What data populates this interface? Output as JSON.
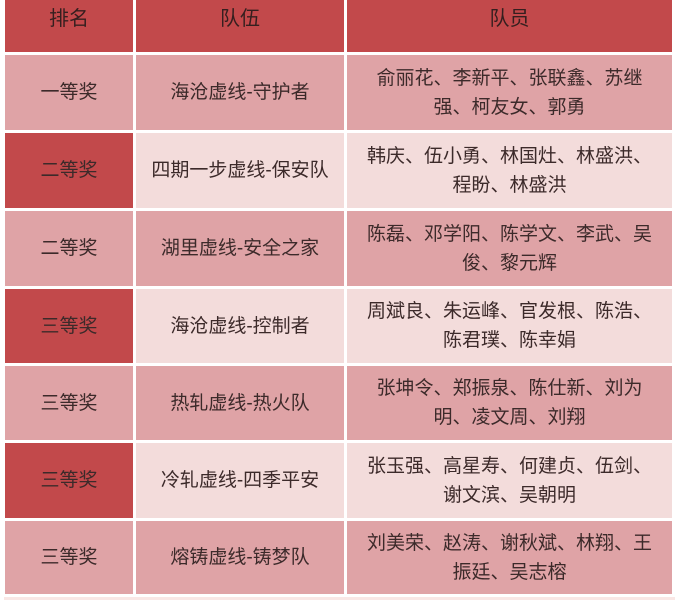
{
  "colors": {
    "dark": "#c2494b",
    "medium": "#dfa3a6",
    "light": "#f3dcdb",
    "header-text": "#351f1f",
    "body-text": "#3c2a2a",
    "page-bg": "#ffffff",
    "bottom-strip": "#f9e7e5"
  },
  "table": {
    "headers": [
      "排名",
      "队伍",
      "队员"
    ],
    "rows": [
      {
        "rank": "一等奖",
        "team": "海沧虚线-守护者",
        "members": "俞丽花、李新平、张联鑫、苏继强、柯友女、郭勇"
      },
      {
        "rank": "二等奖",
        "team": "四期一步虚线-保安队",
        "members": "韩庆、伍小勇、林国灶、林盛洪、程盼、林盛洪"
      },
      {
        "rank": "二等奖",
        "team": "湖里虚线-安全之家",
        "members": "陈磊、邓学阳、陈学文、李武、吴俊、黎元辉"
      },
      {
        "rank": "三等奖",
        "team": "海沧虚线-控制者",
        "members": "周斌良、朱运峰、官发根、陈浩、陈君璞、陈幸娟"
      },
      {
        "rank": "三等奖",
        "team": "热轧虚线-热火队",
        "members": "张坤令、郑振泉、陈仕新、刘为明、凌文周、刘翔"
      },
      {
        "rank": "三等奖",
        "team": "冷轧虚线-四季平安",
        "members": "张玉强、高星寿、何建贞、伍剑、谢文滨、吴朝明"
      },
      {
        "rank": "三等奖",
        "team": "熔铸虚线-铸梦队",
        "members": "刘美荣、赵涛、谢秋斌、林翔、王振廷、吴志榕"
      }
    ]
  }
}
